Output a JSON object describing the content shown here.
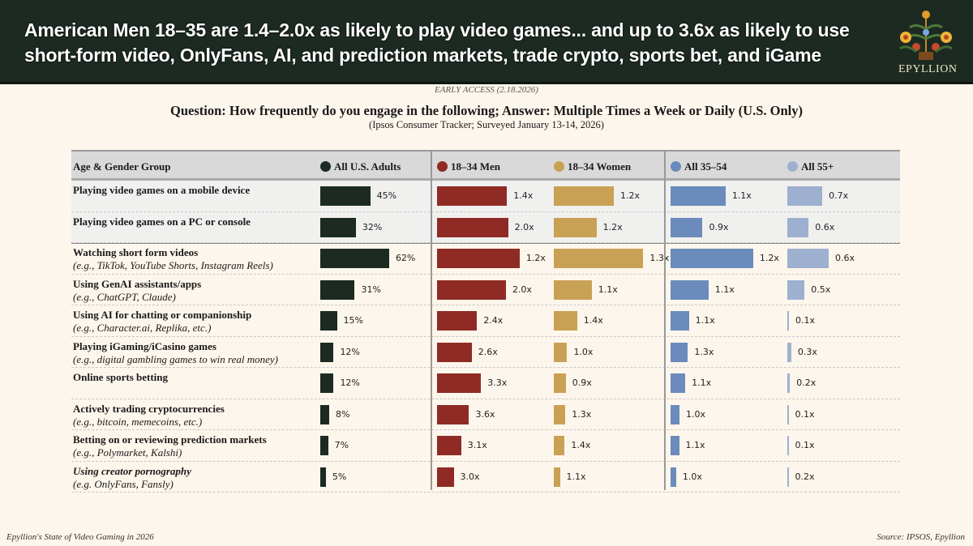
{
  "header": {
    "title_line1": "American Men 18–35 are 1.4–2.0x as likely to play video games... and up to 3.6x as likely to use",
    "title_line2": "short-form video, OnlyFans, AI, and prediction markets, trade crypto, sports bet, and iGame",
    "logo_text": "EPYLLION"
  },
  "early_access": "EARLY ACCESS (2.18.2026)",
  "question": "Question: How frequently do you engage in the following; Answer: Multiple Times a Week or Daily (U.S. Only)",
  "survey_note": "(Ipsos Consumer Tracker; Surveyed January 13-14, 2026)",
  "footer": {
    "left": "Epyllion's State of Video Gaming in 2026",
    "right": "Source: IPSOS, Epyllion"
  },
  "chart_data": {
    "type": "table",
    "row_header": "Age & Gender Group",
    "columns": [
      {
        "name": "All U.S. Adults",
        "color": "#1c2a22",
        "unit": "%"
      },
      {
        "name": "18–34 Men",
        "color": "#8f2b24",
        "unit": "x"
      },
      {
        "name": "18–34 Women",
        "color": "#c9a154",
        "unit": "x"
      },
      {
        "name": "All 35–54",
        "color": "#6a8bbb",
        "unit": "x"
      },
      {
        "name": "All 55+",
        "color": "#9db0d0",
        "unit": "x"
      }
    ],
    "rows": [
      {
        "label": "Playing video games on a mobile device",
        "sub": "",
        "all_adults_pct": 45,
        "multipliers": [
          "1.4x",
          "1.2x",
          "1.1x",
          "0.7x"
        ]
      },
      {
        "label": "Playing video games on a PC or console",
        "sub": "",
        "all_adults_pct": 32,
        "multipliers": [
          "2.0x",
          "1.2x",
          "0.9x",
          "0.6x"
        ]
      },
      {
        "label": "Watching short form videos",
        "sub": "(e.g., TikTok, YouTube Shorts, Instagram Reels)",
        "all_adults_pct": 62,
        "multipliers": [
          "1.2x",
          "1.3x",
          "1.2x",
          "0.6x"
        ]
      },
      {
        "label": "Using GenAI assistants/apps",
        "sub": "(e.g., ChatGPT, Claude)",
        "all_adults_pct": 31,
        "multipliers": [
          "2.0x",
          "1.1x",
          "1.1x",
          "0.5x"
        ]
      },
      {
        "label": "Using AI for chatting or companionship",
        "sub": "(e.g., Character.ai, Replika, etc.)",
        "all_adults_pct": 15,
        "multipliers": [
          "2.4x",
          "1.4x",
          "1.1x",
          "0.1x"
        ]
      },
      {
        "label": "Playing iGaming/iCasino games",
        "sub": "(e.g., digital gambling games to win real money)",
        "all_adults_pct": 12,
        "multipliers": [
          "2.6x",
          "1.0x",
          "1.3x",
          "0.3x"
        ]
      },
      {
        "label": "Online sports betting",
        "sub": "",
        "all_adults_pct": 12,
        "multipliers": [
          "3.3x",
          "0.9x",
          "1.1x",
          "0.2x"
        ]
      },
      {
        "label": "Actively trading cryptocurrencies",
        "sub": "(e.g., bitcoin, memecoins, etc.)",
        "all_adults_pct": 8,
        "multipliers": [
          "3.6x",
          "1.3x",
          "1.0x",
          "0.1x"
        ]
      },
      {
        "label": "Betting on or reviewing prediction markets",
        "sub": "(e.g., Polymarket, Kalshi)",
        "all_adults_pct": 7,
        "multipliers": [
          "3.1x",
          "1.4x",
          "1.1x",
          "0.1x"
        ]
      },
      {
        "label": "Using creator pornography",
        "sub": "(e.g. OnlyFans, Fansly)",
        "all_adults_pct": 5,
        "multipliers": [
          "3.0x",
          "1.1x",
          "1.0x",
          "0.2x"
        ],
        "label_italic": true
      }
    ]
  }
}
